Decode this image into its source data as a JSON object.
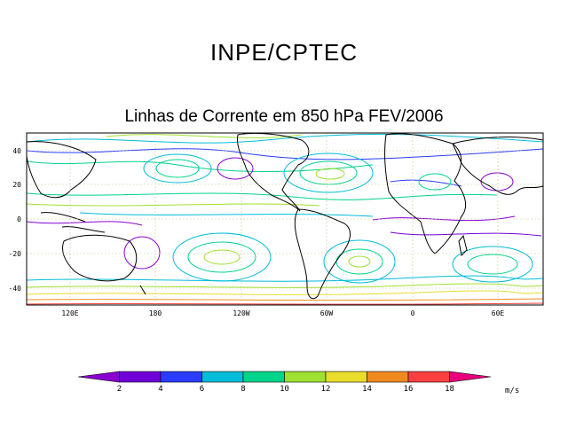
{
  "header": {
    "title": "INPE/CPTEC",
    "subtitle": "Linhas de Corrente em 850 hPa FEV/2006"
  },
  "map": {
    "y_ticks": [
      "40",
      "20",
      "0",
      "-20",
      "-40"
    ],
    "x_ticks": [
      "120E",
      "180",
      "120W",
      "60W",
      "0",
      "60E"
    ]
  },
  "colorbar": {
    "levels": [
      "2",
      "4",
      "6",
      "8",
      "10",
      "12",
      "14",
      "16",
      "18"
    ],
    "colors": [
      "#8a00d0",
      "#7000d8",
      "#2a3cff",
      "#00bcd8",
      "#00d48a",
      "#a0e030",
      "#e8dc2c",
      "#f08a20",
      "#f84040",
      "#e8007c"
    ],
    "unit": "m/s"
  }
}
